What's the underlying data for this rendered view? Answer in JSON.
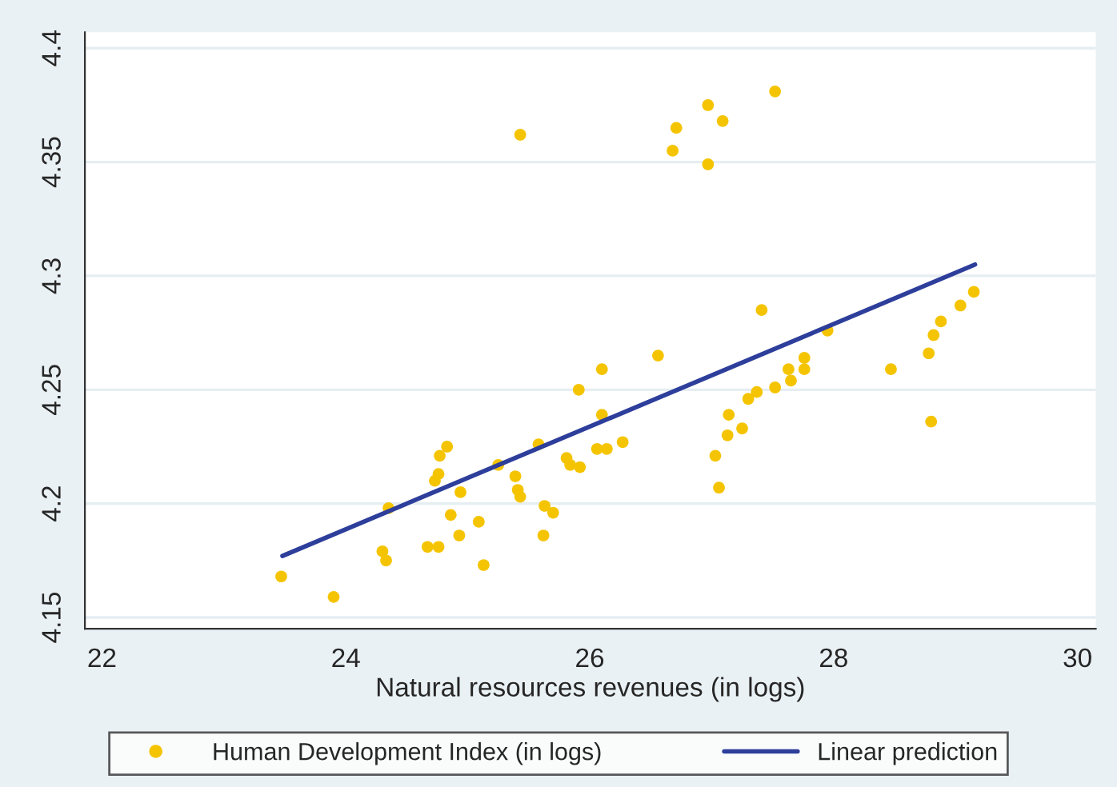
{
  "chart_data": {
    "type": "scatter",
    "xlabel": "Natural resources revenues (in logs)",
    "xlim": [
      21.86,
      30.15
    ],
    "xticks": [
      22,
      24,
      26,
      28,
      30
    ],
    "ylim": [
      4.145,
      4.407
    ],
    "yticks": [
      4.15,
      4.2,
      4.25,
      4.3,
      4.35,
      4.4
    ],
    "grid": "y",
    "legend": "bottom",
    "marker": "circle",
    "series": [
      {
        "name": "Human Development Index (in logs)",
        "color": "#f5c400",
        "x": [
          23.47,
          23.9,
          24.3,
          24.33,
          24.35,
          24.67,
          24.76,
          24.73,
          24.76,
          24.77,
          24.83,
          24.86,
          24.93,
          24.94,
          25.09,
          25.13,
          25.25,
          25.39,
          25.41,
          25.43,
          25.43,
          25.58,
          25.62,
          25.63,
          25.7,
          25.81,
          25.84,
          25.92,
          25.91,
          26.06,
          26.1,
          26.1,
          26.14,
          26.27,
          26.56,
          26.68,
          26.71,
          26.97,
          27.09,
          26.97,
          27.52,
          27.41,
          27.03,
          27.06,
          27.13,
          27.14,
          27.25,
          27.3,
          27.37,
          27.52,
          27.63,
          27.65,
          27.76,
          27.76,
          27.95,
          28.47,
          28.78,
          28.8,
          28.82,
          28.88,
          29.04,
          29.15
        ],
        "values": [
          4.168,
          4.159,
          4.179,
          4.175,
          4.198,
          4.181,
          4.181,
          4.21,
          4.213,
          4.221,
          4.225,
          4.195,
          4.186,
          4.205,
          4.192,
          4.173,
          4.217,
          4.212,
          4.206,
          4.203,
          4.362,
          4.226,
          4.186,
          4.199,
          4.196,
          4.22,
          4.217,
          4.216,
          4.25,
          4.224,
          4.259,
          4.239,
          4.224,
          4.227,
          4.265,
          4.355,
          4.365,
          4.375,
          4.368,
          4.349,
          4.381,
          4.285,
          4.221,
          4.207,
          4.23,
          4.239,
          4.233,
          4.246,
          4.249,
          4.251,
          4.259,
          4.254,
          4.264,
          4.259,
          4.276,
          4.259,
          4.266,
          4.236,
          4.274,
          4.28,
          4.287,
          4.293
        ]
      },
      {
        "name": "Linear prediction",
        "type": "line",
        "color": "#2d3e9b",
        "marker": "none",
        "x": [
          23.48,
          29.16
        ],
        "values": [
          4.177,
          4.305
        ]
      }
    ]
  }
}
